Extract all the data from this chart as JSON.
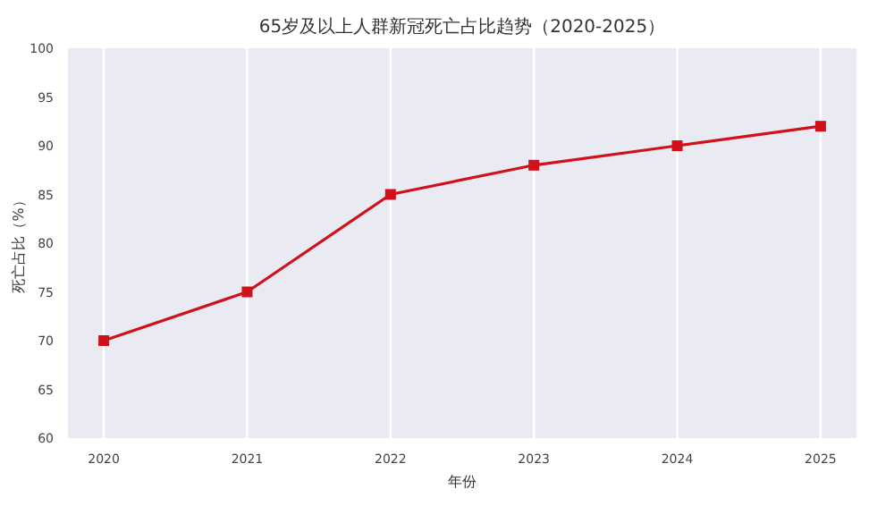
{
  "chart_data": {
    "type": "line",
    "title": "65岁及以上人群新冠死亡占比趋势（2020-2025）",
    "xlabel": "年份",
    "ylabel": "死亡占比（%）",
    "x": [
      2020,
      2021,
      2022,
      2023,
      2024,
      2025
    ],
    "series": [
      {
        "color": "#d0101a",
        "values": [
          70,
          75,
          85,
          88,
          90,
          92
        ]
      }
    ],
    "xlim": [
      2019.75,
      2025.25
    ],
    "ylim": [
      60,
      100
    ],
    "xticks": [
      2020,
      2021,
      2022,
      2023,
      2024,
      2025
    ],
    "yticks": [
      60,
      65,
      70,
      75,
      80,
      85,
      90,
      95,
      100
    ],
    "grid": "x",
    "marker": "square",
    "line_style": "solid"
  }
}
